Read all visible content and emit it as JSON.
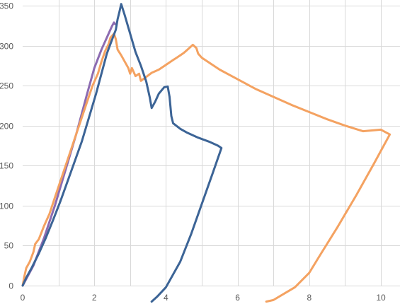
{
  "chart_data": {
    "type": "line",
    "title": "",
    "xlabel": "",
    "ylabel": "",
    "xlim": [
      0,
      10.5
    ],
    "ylim": [
      0,
      350
    ],
    "xticks": [
      0,
      2,
      4,
      6,
      8,
      10
    ],
    "yticks": [
      0,
      50,
      100,
      150,
      200,
      250,
      300,
      350
    ],
    "grid": true,
    "legend": "none",
    "series": [
      {
        "color": "#8c6bb1",
        "points": [
          [
            0,
            0
          ],
          [
            0.3,
            25
          ],
          [
            0.6,
            60
          ],
          [
            0.9,
            100
          ],
          [
            1.2,
            145
          ],
          [
            1.5,
            190
          ],
          [
            1.8,
            240
          ],
          [
            2.0,
            272
          ],
          [
            2.2,
            295
          ],
          [
            2.4,
            315
          ],
          [
            2.5,
            325
          ],
          [
            2.55,
            329
          ],
          [
            2.58,
            327
          ]
        ]
      },
      {
        "color": "#f4a261",
        "points": [
          [
            0,
            0
          ],
          [
            0.05,
            12
          ],
          [
            0.1,
            22
          ],
          [
            0.2,
            30
          ],
          [
            0.3,
            42
          ],
          [
            0.35,
            52
          ],
          [
            0.45,
            58
          ],
          [
            0.6,
            75
          ],
          [
            0.75,
            90
          ],
          [
            0.9,
            110
          ],
          [
            1.05,
            130
          ],
          [
            1.2,
            150
          ],
          [
            1.35,
            170
          ],
          [
            1.5,
            190
          ],
          [
            1.65,
            210
          ],
          [
            1.8,
            230
          ],
          [
            1.95,
            250
          ],
          [
            2.1,
            265
          ],
          [
            2.2,
            280
          ],
          [
            2.3,
            293
          ],
          [
            2.4,
            302
          ],
          [
            2.45,
            310
          ],
          [
            2.55,
            315
          ],
          [
            2.6,
            308
          ],
          [
            2.65,
            295
          ],
          [
            2.75,
            288
          ],
          [
            2.85,
            280
          ],
          [
            2.95,
            272
          ],
          [
            3.0,
            265
          ],
          [
            3.05,
            272
          ],
          [
            3.15,
            262
          ],
          [
            3.25,
            265
          ],
          [
            3.3,
            256
          ],
          [
            3.6,
            266
          ],
          [
            3.8,
            270
          ],
          [
            4.0,
            276
          ],
          [
            4.2,
            282
          ],
          [
            4.3,
            285
          ],
          [
            4.5,
            291
          ],
          [
            4.6,
            295
          ],
          [
            4.7,
            299
          ],
          [
            4.75,
            301
          ],
          [
            4.85,
            297
          ],
          [
            4.9,
            290
          ],
          [
            5.0,
            285
          ],
          [
            5.5,
            270
          ],
          [
            6.0,
            258
          ],
          [
            6.5,
            246
          ],
          [
            7.0,
            236
          ],
          [
            7.5,
            226
          ],
          [
            8.0,
            217
          ],
          [
            8.5,
            208
          ],
          [
            9.0,
            200
          ],
          [
            9.5,
            193
          ],
          [
            10.0,
            195
          ],
          [
            10.25,
            189
          ],
          [
            9.8,
            152
          ],
          [
            9.3,
            112
          ],
          [
            8.8,
            74
          ],
          [
            8.3,
            38
          ],
          [
            8.0,
            16
          ],
          [
            7.6,
            -2
          ],
          [
            7.3,
            -10
          ],
          [
            7.0,
            -18
          ],
          [
            6.8,
            -20
          ]
        ]
      },
      {
        "color": "#3c6496",
        "points": [
          [
            0,
            0
          ],
          [
            0.1,
            10
          ],
          [
            0.25,
            22
          ],
          [
            0.45,
            40
          ],
          [
            0.65,
            60
          ],
          [
            0.85,
            82
          ],
          [
            1.05,
            105
          ],
          [
            1.25,
            130
          ],
          [
            1.45,
            155
          ],
          [
            1.65,
            180
          ],
          [
            1.85,
            210
          ],
          [
            2.05,
            240
          ],
          [
            2.2,
            265
          ],
          [
            2.35,
            290
          ],
          [
            2.5,
            308
          ],
          [
            2.6,
            320
          ],
          [
            2.65,
            333
          ],
          [
            2.7,
            342
          ],
          [
            2.75,
            352
          ],
          [
            2.85,
            338
          ],
          [
            3.0,
            315
          ],
          [
            3.15,
            292
          ],
          [
            3.3,
            275
          ],
          [
            3.45,
            255
          ],
          [
            3.55,
            235
          ],
          [
            3.6,
            222
          ],
          [
            3.7,
            230
          ],
          [
            3.8,
            240
          ],
          [
            3.95,
            248
          ],
          [
            4.05,
            249
          ],
          [
            4.1,
            236
          ],
          [
            4.15,
            212
          ],
          [
            4.2,
            203
          ],
          [
            4.4,
            196
          ],
          [
            4.6,
            191
          ],
          [
            4.9,
            185
          ],
          [
            5.2,
            180
          ],
          [
            5.45,
            175
          ],
          [
            5.55,
            172
          ],
          [
            5.3,
            140
          ],
          [
            5.0,
            102
          ],
          [
            4.7,
            64
          ],
          [
            4.4,
            30
          ],
          [
            4.0,
            -2
          ],
          [
            3.75,
            -14
          ],
          [
            3.6,
            -20
          ]
        ]
      }
    ]
  }
}
